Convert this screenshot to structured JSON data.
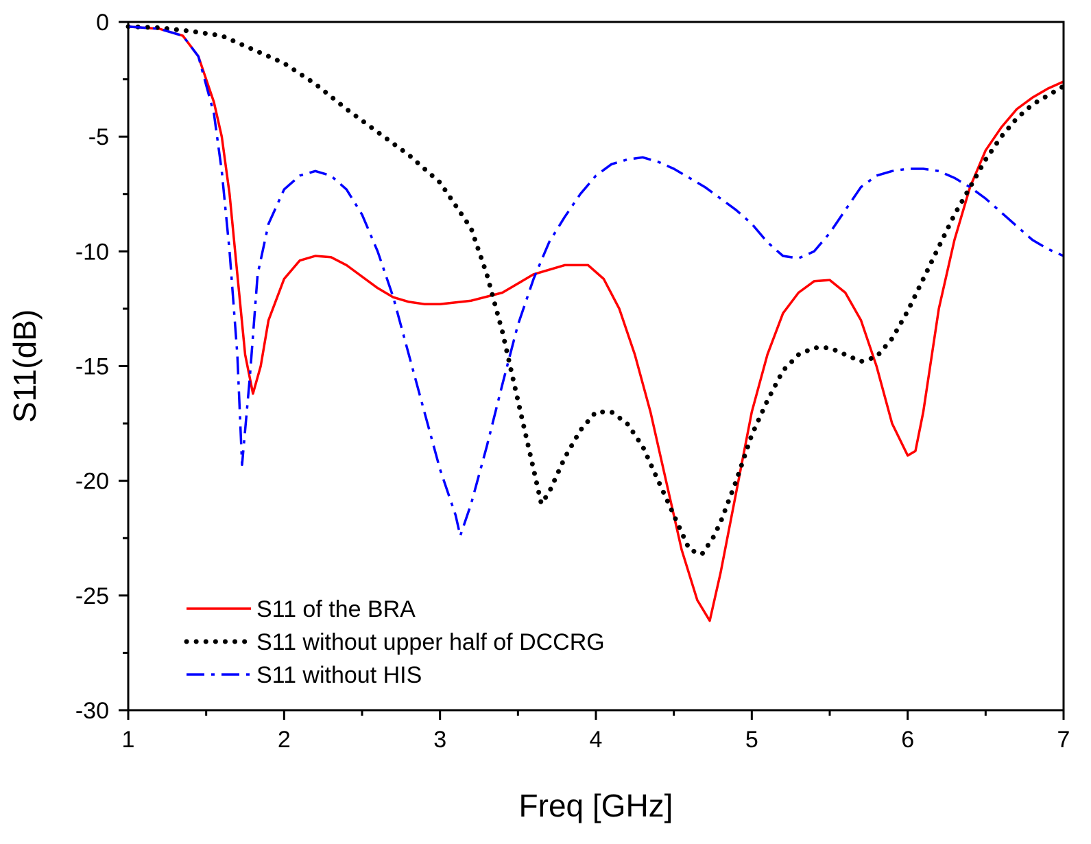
{
  "chart_data": {
    "type": "line",
    "title": "",
    "xlabel": "Freq [GHz]",
    "ylabel": "S11(dB)",
    "xlim": [
      1,
      7
    ],
    "ylim": [
      -30,
      0
    ],
    "xticks": [
      1,
      2,
      3,
      4,
      5,
      6,
      7
    ],
    "xtick_labels": [
      "1",
      "2",
      "3",
      "4",
      "5",
      "6",
      "7"
    ],
    "yticks": [
      0,
      -5,
      -10,
      -15,
      -20,
      -25,
      -30
    ],
    "ytick_labels": [
      "0",
      "-5",
      "-10",
      "-15",
      "-20",
      "-25",
      "-30"
    ],
    "grid": false,
    "legend_position": "bottom-left",
    "series": [
      {
        "name": "S11 of the BRA",
        "color": "#ff0000",
        "style": "solid",
        "x": [
          1.0,
          1.2,
          1.35,
          1.45,
          1.55,
          1.6,
          1.65,
          1.7,
          1.75,
          1.8,
          1.85,
          1.9,
          2.0,
          2.1,
          2.2,
          2.3,
          2.4,
          2.5,
          2.6,
          2.7,
          2.8,
          2.9,
          3.0,
          3.2,
          3.4,
          3.6,
          3.8,
          3.95,
          4.05,
          4.15,
          4.25,
          4.35,
          4.45,
          4.55,
          4.65,
          4.73,
          4.8,
          4.9,
          5.0,
          5.1,
          5.2,
          5.3,
          5.4,
          5.5,
          5.6,
          5.7,
          5.8,
          5.9,
          6.0,
          6.05,
          6.1,
          6.2,
          6.3,
          6.4,
          6.5,
          6.6,
          6.7,
          6.8,
          6.9,
          7.0
        ],
        "y": [
          -0.2,
          -0.3,
          -0.6,
          -1.5,
          -3.5,
          -5.0,
          -7.5,
          -11.0,
          -14.5,
          -16.2,
          -15.0,
          -13.0,
          -11.2,
          -10.4,
          -10.2,
          -10.25,
          -10.6,
          -11.1,
          -11.6,
          -12.0,
          -12.2,
          -12.3,
          -12.3,
          -12.15,
          -11.8,
          -11.0,
          -10.6,
          -10.6,
          -11.2,
          -12.5,
          -14.5,
          -17.0,
          -20.0,
          -23.0,
          -25.2,
          -26.1,
          -24.0,
          -20.5,
          -17.0,
          -14.5,
          -12.7,
          -11.8,
          -11.3,
          -11.25,
          -11.8,
          -13.0,
          -15.0,
          -17.5,
          -18.9,
          -18.7,
          -17.0,
          -12.5,
          -9.5,
          -7.2,
          -5.6,
          -4.6,
          -3.8,
          -3.3,
          -2.9,
          -2.6
        ]
      },
      {
        "name": "S11 without upper half of DCCRG",
        "color": "#000000",
        "style": "dotted",
        "x": [
          1.0,
          1.2,
          1.4,
          1.6,
          1.8,
          2.0,
          2.2,
          2.4,
          2.6,
          2.8,
          3.0,
          3.2,
          3.3,
          3.4,
          3.5,
          3.6,
          3.65,
          3.7,
          3.8,
          3.9,
          4.0,
          4.1,
          4.2,
          4.3,
          4.4,
          4.5,
          4.6,
          4.68,
          4.75,
          4.8,
          4.9,
          5.0,
          5.1,
          5.2,
          5.3,
          5.4,
          5.5,
          5.6,
          5.7,
          5.8,
          5.9,
          6.0,
          6.1,
          6.2,
          6.3,
          6.4,
          6.5,
          6.6,
          6.7,
          6.8,
          6.9,
          7.0
        ],
        "y": [
          -0.2,
          -0.25,
          -0.4,
          -0.6,
          -1.2,
          -1.8,
          -2.7,
          -3.8,
          -4.8,
          -5.8,
          -7.0,
          -9.0,
          -11.0,
          -13.5,
          -16.5,
          -19.5,
          -21.0,
          -20.5,
          -19.0,
          -17.8,
          -17.0,
          -17.0,
          -17.5,
          -18.5,
          -20.0,
          -21.5,
          -23.0,
          -23.2,
          -22.5,
          -21.8,
          -20.0,
          -18.0,
          -16.5,
          -15.2,
          -14.5,
          -14.2,
          -14.2,
          -14.5,
          -14.8,
          -14.6,
          -13.8,
          -12.6,
          -11.2,
          -9.8,
          -8.4,
          -7.2,
          -6.0,
          -5.0,
          -4.2,
          -3.6,
          -3.2,
          -2.8
        ]
      },
      {
        "name": "S11 without HIS",
        "color": "#0000ff",
        "style": "dashdot",
        "x": [
          1.0,
          1.2,
          1.35,
          1.45,
          1.55,
          1.6,
          1.65,
          1.7,
          1.73,
          1.78,
          1.83,
          1.9,
          2.0,
          2.1,
          2.2,
          2.3,
          2.4,
          2.5,
          2.6,
          2.7,
          2.8,
          2.9,
          3.0,
          3.1,
          3.13,
          3.2,
          3.3,
          3.4,
          3.5,
          3.6,
          3.7,
          3.8,
          3.9,
          4.0,
          4.1,
          4.2,
          4.3,
          4.4,
          4.5,
          4.6,
          4.7,
          4.8,
          4.9,
          5.0,
          5.1,
          5.2,
          5.3,
          5.4,
          5.5,
          5.6,
          5.7,
          5.8,
          5.9,
          6.0,
          6.1,
          6.2,
          6.3,
          6.4,
          6.5,
          6.6,
          6.7,
          6.8,
          6.9,
          7.0
        ],
        "y": [
          -0.2,
          -0.3,
          -0.6,
          -1.5,
          -4.0,
          -6.5,
          -10.0,
          -14.5,
          -19.3,
          -15.5,
          -11.0,
          -8.8,
          -7.3,
          -6.7,
          -6.5,
          -6.7,
          -7.3,
          -8.4,
          -10.0,
          -12.0,
          -14.5,
          -17.0,
          -19.5,
          -21.5,
          -22.4,
          -21.0,
          -18.5,
          -15.8,
          -13.2,
          -11.2,
          -9.6,
          -8.5,
          -7.5,
          -6.7,
          -6.2,
          -6.0,
          -5.9,
          -6.1,
          -6.4,
          -6.8,
          -7.2,
          -7.7,
          -8.2,
          -8.8,
          -9.6,
          -10.2,
          -10.3,
          -10.0,
          -9.2,
          -8.2,
          -7.2,
          -6.7,
          -6.5,
          -6.4,
          -6.4,
          -6.5,
          -6.8,
          -7.2,
          -7.7,
          -8.3,
          -8.9,
          -9.5,
          -9.9,
          -10.2
        ]
      }
    ]
  }
}
